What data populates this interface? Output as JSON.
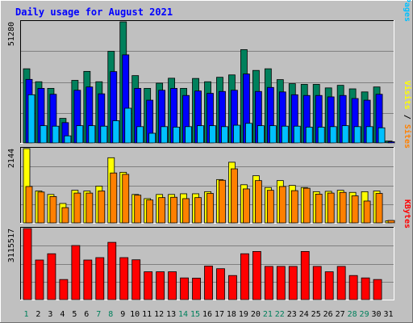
{
  "chart_data": {
    "type": "bar",
    "title": "Daily usage for August 2021",
    "categories": [
      "1",
      "2",
      "3",
      "4",
      "5",
      "6",
      "7",
      "8",
      "9",
      "10",
      "11",
      "12",
      "13",
      "14",
      "15",
      "16",
      "17",
      "18",
      "19",
      "20",
      "21",
      "22",
      "23",
      "24",
      "25",
      "26",
      "27",
      "28",
      "29",
      "30",
      "31"
    ],
    "weekend_days": [
      "1",
      "7",
      "8",
      "14",
      "15",
      "21",
      "22",
      "28",
      "29"
    ],
    "panels": [
      {
        "id": "hits-files-pages",
        "max_label": "51280",
        "ymax": 51280,
        "legend": [
          {
            "text": "Pages",
            "color": "#00c0ff"
          },
          {
            "text": " / ",
            "color": "#000000"
          },
          {
            "text": "Files",
            "color": "#0000ff"
          },
          {
            "text": " / ",
            "color": "#000000"
          },
          {
            "text": "Hits",
            "color": "#00805c"
          }
        ],
        "series": [
          {
            "name": "Hits",
            "color": "#00805c",
            "values": [
              31400,
              25900,
              23100,
              10400,
              26500,
              30300,
              25900,
              38800,
              51280,
              28500,
              23100,
              25300,
              27400,
              23100,
              27300,
              25900,
              27800,
              28800,
              39500,
              30700,
              31400,
              26800,
              25100,
              24800,
              24800,
              23300,
              24400,
              22900,
              21600,
              23700,
              800
            ]
          },
          {
            "name": "Files",
            "color": "#0000ff",
            "values": [
              26900,
              23100,
              20600,
              8600,
              22300,
              23700,
              20800,
              30200,
              37300,
              23100,
              18100,
              22300,
              23100,
              20100,
              22000,
              21000,
              21800,
              22300,
              29200,
              21800,
              23500,
              21600,
              20400,
              20100,
              20100,
              19500,
              20100,
              18800,
              18100,
              20600,
              500
            ]
          },
          {
            "name": "Pages",
            "color": "#00c0ff",
            "values": [
              20400,
              7300,
              7100,
              3000,
              7300,
              7300,
              7100,
              9400,
              14700,
              6900,
              4100,
              6900,
              6700,
              6900,
              7300,
              7300,
              6900,
              7500,
              8300,
              7300,
              7300,
              7100,
              7100,
              6700,
              6700,
              6900,
              7300,
              6900,
              6900,
              6400,
              0
            ]
          }
        ]
      },
      {
        "id": "visits-sites",
        "max_label": "2144",
        "ymax": 2144,
        "legend": [
          {
            "text": "Sites",
            "color": "#ff8000"
          },
          {
            "text": " / ",
            "color": "#000000"
          },
          {
            "text": "Visits",
            "color": "#ffff00"
          }
        ],
        "series": [
          {
            "name": "Visits",
            "color": "#ffff00",
            "values": [
              2144,
              920,
              820,
              560,
              940,
              920,
              1060,
              1880,
              1460,
              820,
              700,
              820,
              820,
              840,
              840,
              900,
              1250,
              1750,
              1100,
              1360,
              1020,
              1220,
              1080,
              1020,
              900,
              910,
              940,
              880,
              900,
              920,
              60
            ]
          },
          {
            "name": "Sites",
            "color": "#ff8000",
            "values": [
              1050,
              890,
              760,
              440,
              860,
              860,
              920,
              1440,
              1400,
              800,
              660,
              730,
              740,
              700,
              730,
              850,
              1230,
              1560,
              980,
              1220,
              940,
              1050,
              930,
              1000,
              830,
              860,
              880,
              780,
              630,
              850,
              70
            ]
          }
        ]
      },
      {
        "id": "kbytes",
        "max_label": "3115517",
        "ymax": 3115517,
        "legend": [
          {
            "text": "KBytes",
            "color": "#ff0000"
          }
        ],
        "series": [
          {
            "name": "KBytes",
            "color": "#ff0000",
            "values": [
              3115517,
              1735000,
              2010000,
              880000,
              2370000,
              1735000,
              1840000,
              2510000,
              1840000,
              1745000,
              1220000,
              1220000,
              1220000,
              950000,
              940000,
              1470000,
              1355000,
              1055000,
              2010000,
              2110000,
              1455000,
              1455000,
              1455000,
              2110000,
              1455000,
              1220000,
              1455000,
              1055000,
              950000,
              880000,
              0
            ]
          }
        ]
      }
    ]
  }
}
